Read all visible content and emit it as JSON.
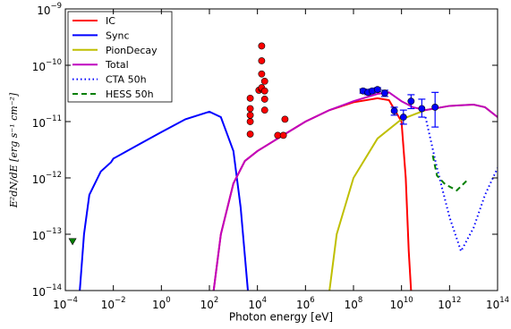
{
  "chart_data": {
    "type": "line",
    "xlabel": "Photon energy [eV]",
    "ylabel": "E²dN/dE [erg s⁻¹ cm⁻²]",
    "xscale": "log",
    "yscale": "log",
    "xlim": [
      0.0001,
      100000000000000
    ],
    "ylim": [
      1e-14,
      1e-09
    ],
    "xticks": [
      {
        "value": 0.0001,
        "label": "10^−4"
      },
      {
        "value": 0.01,
        "label": "10^−2"
      },
      {
        "value": 1,
        "label": "10^0"
      },
      {
        "value": 100,
        "label": "10^2"
      },
      {
        "value": 10000,
        "label": "10^4"
      },
      {
        "value": 1000000,
        "label": "10^6"
      },
      {
        "value": 100000000,
        "label": "10^8"
      },
      {
        "value": 10000000000,
        "label": "10^10"
      },
      {
        "value": 1000000000000,
        "label": "10^12"
      },
      {
        "value": 100000000000000,
        "label": "10^14"
      }
    ],
    "yticks": [
      {
        "value": 1e-14,
        "label": "10^−14"
      },
      {
        "value": 1e-13,
        "label": "10^−13"
      },
      {
        "value": 1e-12,
        "label": "10^−12"
      },
      {
        "value": 1e-11,
        "label": "10^−11"
      },
      {
        "value": 1e-10,
        "label": "10^−10"
      },
      {
        "value": 1e-09,
        "label": "10^−9"
      }
    ],
    "legend": "upper left",
    "series": [
      {
        "name": "IC",
        "color": "#ff0000",
        "style": "solid",
        "x": [
          150,
          300,
          1000,
          3000,
          10000,
          30000,
          100000,
          1000000,
          10000000,
          100000000,
          1000000000,
          3000000000,
          10000000000,
          15000000000,
          20000000000,
          25000000000
        ],
        "y": [
          1e-14,
          1e-13,
          8e-13,
          2e-12,
          3e-12,
          4e-12,
          5.5e-12,
          1e-11,
          1.6e-11,
          2.2e-11,
          2.6e-11,
          2.4e-11,
          1e-11,
          1e-12,
          5e-14,
          1e-14
        ]
      },
      {
        "name": "Sync",
        "color": "#0000ff",
        "style": "solid",
        "x": [
          0.0004,
          0.0006,
          0.001,
          0.003,
          0.008,
          0.01,
          0.1,
          1,
          10,
          100,
          300,
          1000,
          2000,
          4000
        ],
        "y": [
          1e-14,
          1e-13,
          5e-13,
          1.3e-12,
          1.9e-12,
          2.2e-12,
          3.8e-12,
          6.5e-12,
          1.1e-11,
          1.5e-11,
          1.2e-11,
          3e-12,
          3e-13,
          1e-14
        ]
      },
      {
        "name": "PionDecay",
        "color": "#bfbf00",
        "style": "solid",
        "x": [
          10000000,
          20000000,
          100000000,
          1000000000,
          10000000000,
          100000000000,
          1000000000000,
          10000000000000,
          30000000000000,
          100000000000000
        ],
        "y": [
          1e-14,
          1e-13,
          1e-12,
          5e-12,
          1.1e-11,
          1.6e-11,
          1.9e-11,
          2e-11,
          1.8e-11,
          1.2e-11
        ]
      },
      {
        "name": "Total",
        "color": "#bf00bf",
        "style": "solid",
        "x": [
          150,
          300,
          1000,
          3000,
          10000,
          30000,
          100000,
          1000000,
          10000000,
          100000000,
          1000000000,
          3000000000,
          10000000000,
          30000000000,
          100000000000,
          1000000000000,
          10000000000000,
          30000000000000,
          100000000000000
        ],
        "y": [
          1e-14,
          1e-13,
          8e-13,
          2e-12,
          3e-12,
          4e-12,
          5.5e-12,
          1e-11,
          1.6e-11,
          2.3e-11,
          3.1e-11,
          3.3e-11,
          2.3e-11,
          1.8e-11,
          1.6e-11,
          1.9e-11,
          2e-11,
          1.8e-11,
          1.2e-11
        ]
      },
      {
        "name": "CTA 50h",
        "color": "#0000ff",
        "style": "dotted",
        "x": [
          100000000000,
          300000000000,
          1000000000000,
          3000000000000,
          10000000000000,
          30000000000000,
          100000000000000
        ],
        "y": [
          1.2e-11,
          1.5e-12,
          2e-13,
          5e-14,
          1.3e-13,
          5e-13,
          1.5e-12
        ]
      },
      {
        "name": "HESS 50h",
        "color": "#007f00",
        "style": "dashed",
        "x": [
          200000000000,
          300000000000,
          600000000000,
          1000000000000,
          2000000000000,
          4000000000000,
          6000000000000
        ],
        "y": [
          2.5e-12,
          1.1e-12,
          8e-13,
          7e-13,
          6e-13,
          8e-13,
          9.5e-13
        ]
      }
    ],
    "points": [
      {
        "marker": "circle",
        "color": "#ff0000",
        "x": [
          5000,
          5000,
          5000,
          5000,
          5000,
          11500,
          15000,
          15000,
          15000,
          15000,
          15000,
          20000,
          20000,
          20000,
          20000,
          70000,
          120000,
          140000
        ],
        "y": [
          6e-12,
          1e-11,
          1.3e-11,
          1.7e-11,
          2.6e-11,
          3.6e-11,
          2.2e-10,
          1.2e-10,
          7e-11,
          3.8e-11,
          4e-11,
          5.2e-11,
          3.5e-11,
          2.5e-11,
          1.6e-11,
          5.7e-12,
          5.7e-12,
          1.1e-11
        ]
      },
      {
        "marker": "circle",
        "color": "#0000ff",
        "x": [
          250000000,
          400000000,
          600000000,
          1000000000,
          2000000000,
          5000000000,
          12000000000,
          25000000000,
          70000000000,
          250000000000
        ],
        "y": [
          3.5e-11,
          3.3e-11,
          3.5e-11,
          3.7e-11,
          3.2e-11,
          1.55e-11,
          1.2e-11,
          2.3e-11,
          1.7e-11,
          1.8e-11
        ],
        "ylow": [
          3.2e-11,
          3e-11,
          3.2e-11,
          3.4e-11,
          2.8e-11,
          1.3e-11,
          9e-12,
          1.7e-11,
          1.2e-11,
          8e-12
        ],
        "yhigh": [
          3.8e-11,
          3.6e-11,
          3.8e-11,
          4e-11,
          3.6e-11,
          1.8e-11,
          1.6e-11,
          3e-11,
          2.5e-11,
          3.3e-11
        ]
      },
      {
        "marker": "triangle-down",
        "color": "#007f00",
        "x": [
          0.0002
        ],
        "y": [
          7.4e-14
        ]
      }
    ]
  }
}
